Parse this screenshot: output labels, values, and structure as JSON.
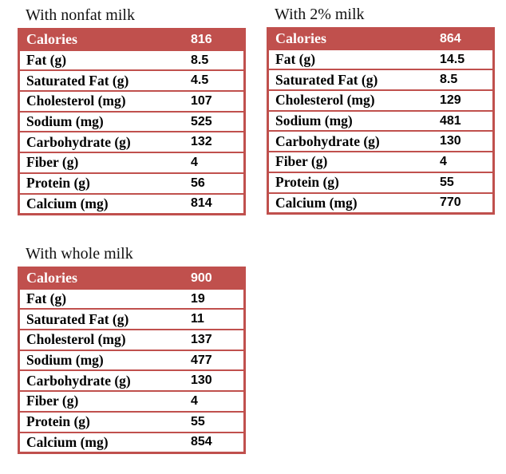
{
  "tables": [
    {
      "title": "With nonfat milk",
      "rows": [
        [
          "Calories",
          "816"
        ],
        [
          "Fat (g)",
          "8.5"
        ],
        [
          "Saturated Fat (g)",
          "4.5"
        ],
        [
          "Cholesterol (mg)",
          "107"
        ],
        [
          "Sodium (mg)",
          "525"
        ],
        [
          "Carbohydrate (g)",
          "132"
        ],
        [
          "Fiber (g)",
          "4"
        ],
        [
          "Protein (g)",
          "56"
        ],
        [
          "Calcium (mg)",
          "814"
        ]
      ]
    },
    {
      "title": "With 2% milk",
      "rows": [
        [
          "Calories",
          "864"
        ],
        [
          "Fat (g)",
          "14.5"
        ],
        [
          "Saturated Fat (g)",
          "8.5"
        ],
        [
          "Cholesterol (mg)",
          "129"
        ],
        [
          "Sodium (mg)",
          "481"
        ],
        [
          "Carbohydrate (g)",
          "130"
        ],
        [
          "Fiber (g)",
          "4"
        ],
        [
          "Protein (g)",
          "55"
        ],
        [
          "Calcium (mg)",
          "770"
        ]
      ]
    },
    {
      "title": "With whole milk",
      "rows": [
        [
          "Calories",
          "900"
        ],
        [
          "Fat (g)",
          "19"
        ],
        [
          "Saturated Fat (g)",
          "11"
        ],
        [
          "Cholesterol (mg)",
          "137"
        ],
        [
          "Sodium (mg)",
          "477"
        ],
        [
          "Carbohydrate (g)",
          "130"
        ],
        [
          "Fiber (g)",
          "4"
        ],
        [
          "Protein (g)",
          "55"
        ],
        [
          "Calcium (mg)",
          "854"
        ]
      ]
    }
  ],
  "colors": {
    "header": "#c0504d",
    "border": "#c0504d"
  }
}
